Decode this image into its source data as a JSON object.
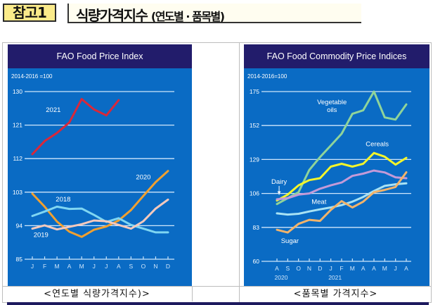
{
  "header": {
    "badge": "참고1",
    "title": "식량가격지수",
    "subtitle": "(연도별 · 품목별)"
  },
  "captions": {
    "left": "<연도별 식량가격지수)>",
    "right": "<품목별 가격지수>"
  },
  "colors": {
    "panel_header": "#221c6b",
    "panel_body": "#0a6bc4",
    "grid": "#cfe6fb"
  },
  "chart_data": [
    {
      "type": "line",
      "title": "FAO Food Price Index",
      "subtitle": "2014-2016 =100",
      "xlabel": "",
      "ylabel": "",
      "categories": [
        "J",
        "F",
        "M",
        "A",
        "M",
        "J",
        "J",
        "A",
        "S",
        "O",
        "N",
        "D"
      ],
      "yticks": [
        130,
        121,
        112,
        103,
        94,
        85
      ],
      "ylim": [
        85,
        130
      ],
      "grid": true,
      "series": [
        {
          "name": "2021",
          "color": "#d9283a",
          "values": [
            113.2,
            116.7,
            118.9,
            121.7,
            128.0,
            125.2,
            123.6,
            127.7
          ],
          "label_anchor": [
            1.7,
            124.5
          ]
        },
        {
          "name": "2020",
          "color": "#f0a030",
          "values": [
            102.6,
            99.1,
            95.1,
            92.4,
            91.0,
            92.9,
            93.8,
            95.4,
            98.2,
            102.0,
            105.7,
            108.7
          ],
          "label_anchor": [
            9.0,
            106.5
          ]
        },
        {
          "name": "2018",
          "color": "#7fd6f2",
          "values": [
            96.6,
            97.8,
            99.1,
            98.5,
            98.6,
            96.9,
            95.0,
            96.0,
            94.2,
            93.2,
            92.2,
            92.2
          ],
          "label_anchor": [
            2.5,
            100.5
          ]
        },
        {
          "name": "2019",
          "color": "#f4c9bd",
          "values": [
            93.2,
            94.1,
            93.0,
            93.7,
            94.4,
            95.4,
            95.2,
            94.2,
            93.2,
            95.2,
            98.6,
            101.0
          ],
          "label_anchor": [
            0.7,
            91.0
          ]
        }
      ]
    },
    {
      "type": "line",
      "title": "FAO Food Commodity Price Indices",
      "subtitle": "2014-2016=100",
      "xlabel": "",
      "ylabel": "",
      "categories": [
        "A",
        "S",
        "O",
        "N",
        "D",
        "J",
        "F",
        "M",
        "A",
        "A",
        "M",
        "J",
        "A"
      ],
      "year_labels": [
        {
          "text": "2020",
          "index": 0
        },
        {
          "text": "2021",
          "index": 5
        }
      ],
      "yticks": [
        175,
        152,
        129,
        106,
        83,
        60
      ],
      "ylim": [
        60,
        175
      ],
      "grid": true,
      "series": [
        {
          "name": "Vegetable oils",
          "label_lines": [
            "Vegetable",
            "oils"
          ],
          "color": "#8fd49a",
          "values": [
            98.8,
            102.8,
            106.8,
            121.9,
            130.6,
            138.5,
            146.4,
            159.9,
            162.3,
            175.0,
            157.5,
            156.0,
            166.3
          ],
          "label_anchor": [
            5.1,
            166.5
          ]
        },
        {
          "name": "Cereals",
          "color": "#f4f52a",
          "values": [
            101.2,
            105.2,
            111.5,
            115.0,
            116.3,
            124.2,
            126.1,
            124.2,
            126.1,
            133.4,
            130.9,
            125.5,
            130.1
          ],
          "label_anchor": [
            9.3,
            138.0
          ]
        },
        {
          "name": "Dairy",
          "color": "#c39ad8",
          "values": [
            102.0,
            102.8,
            105.2,
            106.0,
            109.2,
            111.5,
            113.4,
            117.9,
            119.4,
            121.5,
            120.2,
            116.9,
            116.3
          ],
          "label_anchor": [
            0.2,
            112.5
          ]
        },
        {
          "name": "Meat",
          "color": "#a8e2f4",
          "values": [
            92.5,
            91.7,
            92.2,
            93.8,
            95.2,
            96.5,
            98.1,
            100.4,
            103.6,
            107.6,
            111.1,
            112.2,
            112.8
          ],
          "label_anchor": [
            3.9,
            99.0
          ]
        },
        {
          "name": "Sugar",
          "color": "#f2b36a",
          "values": [
            81.4,
            79.5,
            85.4,
            88.1,
            87.4,
            94.9,
            100.8,
            96.5,
            100.4,
            106.8,
            108.4,
            110.4,
            120.3
          ],
          "label_anchor": [
            1.2,
            72.5
          ]
        }
      ]
    }
  ]
}
